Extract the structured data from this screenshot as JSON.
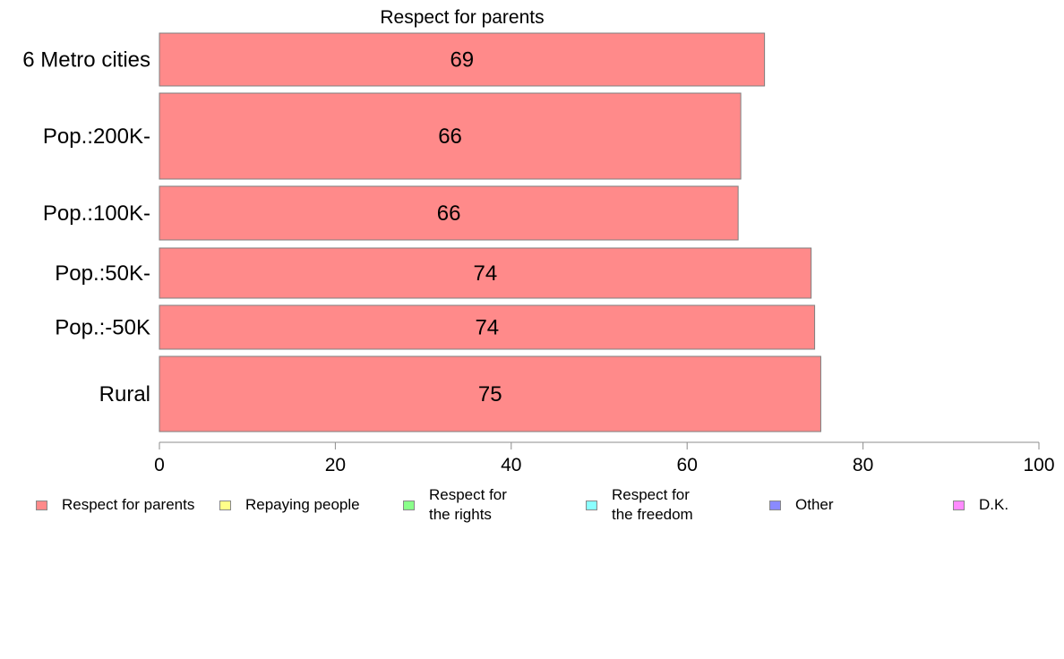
{
  "chart_data": {
    "type": "bar",
    "orientation": "horizontal",
    "title": "Respect for parents",
    "categories": [
      "6 Metro cities",
      "Pop.:200K-",
      "Pop.:100K-",
      "Pop.:50K-",
      "Pop.:-50K",
      "Rural"
    ],
    "values": [
      68.8,
      66.1,
      65.8,
      74.1,
      74.5,
      75.2
    ],
    "value_labels": [
      "69",
      "66",
      "66",
      "74",
      "74",
      "75"
    ],
    "xlim": [
      0,
      100
    ],
    "xticks": [
      "0",
      "20",
      "40",
      "60",
      "80",
      "100"
    ],
    "bar_color": "#ff8a8a",
    "grid": false,
    "legend_position": "bottom"
  },
  "legend": [
    {
      "label": "Respect for parents",
      "color": "#ff8a8a"
    },
    {
      "label": "Repaying people",
      "color": "#ffff8a"
    },
    {
      "label": "Respect for\nthe rights",
      "color": "#8aff8a"
    },
    {
      "label": "Respect for\nthe freedom",
      "color": "#8affff"
    },
    {
      "label": "Other",
      "color": "#8a8aff"
    },
    {
      "label": "D.K.",
      "color": "#ff8aff"
    }
  ]
}
